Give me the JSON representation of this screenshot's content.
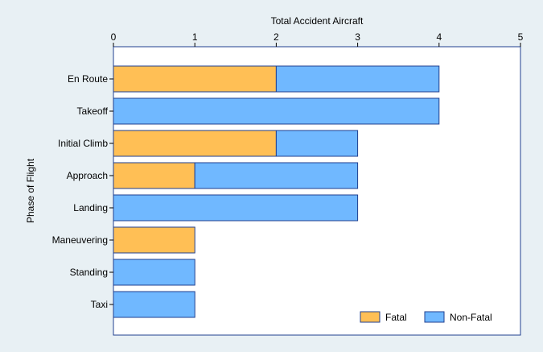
{
  "chart_data": {
    "type": "bar",
    "orientation": "horizontal",
    "stacked": true,
    "xlabel": "Total Accident Aircraft",
    "ylabel": "Phase of Flight",
    "xlim": [
      0,
      5
    ],
    "xticks": [
      "0",
      "1",
      "2",
      "3",
      "4",
      "5"
    ],
    "x_axis_position": "top",
    "categories": [
      "En Route",
      "Takeoff",
      "Initial Climb",
      "Approach",
      "Landing",
      "Maneuvering",
      "Standing",
      "Taxi"
    ],
    "series": [
      {
        "name": "Fatal",
        "color": "#ffbf55",
        "values": [
          2,
          0,
          2,
          1,
          0,
          1,
          0,
          0
        ]
      },
      {
        "name": "Non-Fatal",
        "color": "#70b8ff",
        "values": [
          2,
          4,
          1,
          2,
          3,
          0,
          1,
          1
        ]
      }
    ],
    "legend_position": "bottom-right",
    "grid": false,
    "bar_outline_color": "#1f3f8f"
  }
}
